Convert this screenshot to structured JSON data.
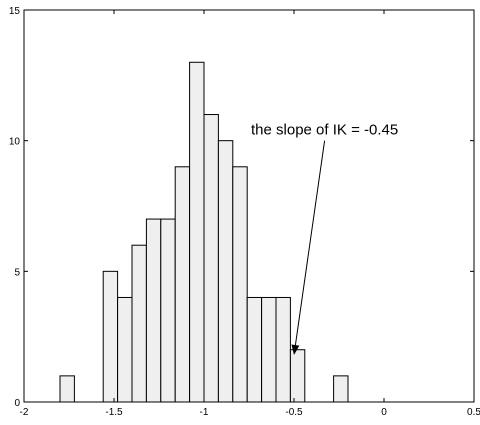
{
  "chart_data": {
    "type": "bar",
    "title": "",
    "xlabel": "",
    "ylabel": "",
    "xlim": [
      -2,
      0.5
    ],
    "ylim": [
      0,
      15
    ],
    "xticks": [
      -2,
      -1.5,
      -1,
      -0.5,
      0,
      0.5
    ],
    "xtick_labels": [
      "-2",
      "-1.5",
      "-1",
      "-0.5",
      "0",
      "0.5"
    ],
    "yticks": [
      0,
      5,
      10,
      15
    ],
    "ytick_labels": [
      "0",
      "5",
      "10",
      "15"
    ],
    "grid": false,
    "bar_color": "#efefef",
    "edge_color": "#000000",
    "bins": [
      {
        "x0": -1.8,
        "x1": -1.72,
        "count": 1
      },
      {
        "x0": -1.72,
        "x1": -1.64,
        "count": 0
      },
      {
        "x0": -1.64,
        "x1": -1.56,
        "count": 0
      },
      {
        "x0": -1.56,
        "x1": -1.48,
        "count": 5
      },
      {
        "x0": -1.48,
        "x1": -1.4,
        "count": 4
      },
      {
        "x0": -1.4,
        "x1": -1.32,
        "count": 6
      },
      {
        "x0": -1.32,
        "x1": -1.24,
        "count": 7
      },
      {
        "x0": -1.24,
        "x1": -1.16,
        "count": 7
      },
      {
        "x0": -1.16,
        "x1": -1.08,
        "count": 9
      },
      {
        "x0": -1.08,
        "x1": -1.0,
        "count": 13
      },
      {
        "x0": -1.0,
        "x1": -0.92,
        "count": 11
      },
      {
        "x0": -0.92,
        "x1": -0.84,
        "count": 10
      },
      {
        "x0": -0.84,
        "x1": -0.76,
        "count": 9
      },
      {
        "x0": -0.76,
        "x1": -0.68,
        "count": 4
      },
      {
        "x0": -0.68,
        "x1": -0.6,
        "count": 4
      },
      {
        "x0": -0.6,
        "x1": -0.52,
        "count": 4
      },
      {
        "x0": -0.52,
        "x1": -0.44,
        "count": 2
      },
      {
        "x0": -0.44,
        "x1": -0.36,
        "count": 0
      },
      {
        "x0": -0.36,
        "x1": -0.28,
        "count": 0
      },
      {
        "x0": -0.28,
        "x1": -0.2,
        "count": 1
      }
    ],
    "annotation": {
      "text": "the slope of IK = -0.45",
      "arrow_from": [
        -0.33,
        10
      ],
      "arrow_to": [
        -0.5,
        1.8
      ]
    }
  }
}
